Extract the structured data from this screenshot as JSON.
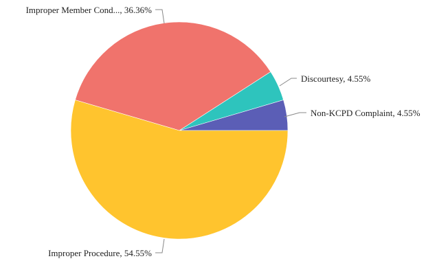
{
  "chart_data": {
    "type": "pie",
    "title": "",
    "start_angle_deg": 0,
    "direction": "counterclockwise",
    "slices": [
      {
        "label": "Non-KCPD Complaint",
        "value": 4.55,
        "display": "Non-KCPD Complaint, 4.55%",
        "color": "#5b5eb6"
      },
      {
        "label": "Discourtesy",
        "value": 4.55,
        "display": "Discourtesy, 4.55%",
        "color": "#2ec4bd"
      },
      {
        "label": "Improper Member Cond...",
        "value": 36.36,
        "display": "Improper Member Cond..., 36.36%",
        "color": "#f0736c"
      },
      {
        "label": "Improper Procedure",
        "value": 54.55,
        "display": "Improper Procedure, 54.55%",
        "color": "#ffc42e"
      }
    ]
  }
}
